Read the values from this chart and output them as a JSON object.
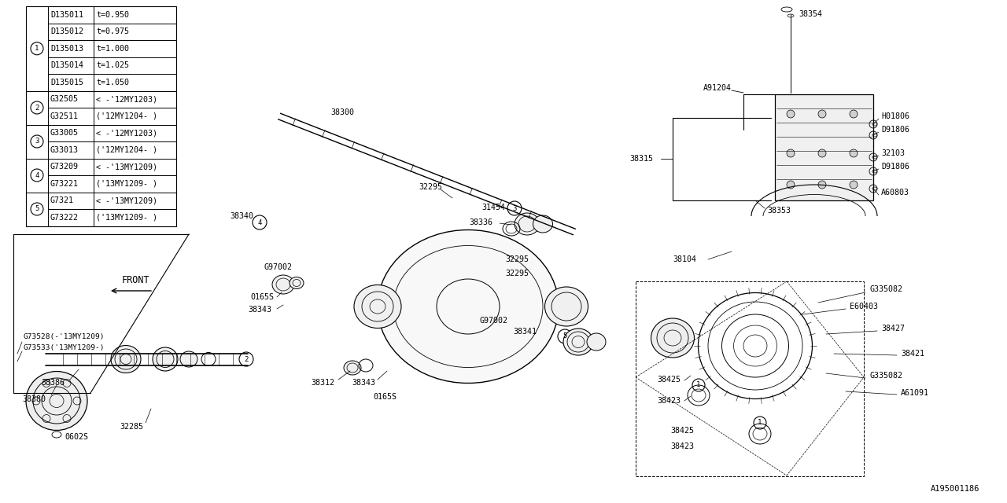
{
  "bg_color": "#ffffff",
  "line_color": "#000000",
  "watermark": "A195001186",
  "table": {
    "rows": [
      {
        "circle": "1",
        "part": "D135011",
        "desc": "t=0.950"
      },
      {
        "circle": "1",
        "part": "D135012",
        "desc": "t=0.975"
      },
      {
        "circle": "1",
        "part": "D135013",
        "desc": "t=1.000"
      },
      {
        "circle": "1",
        "part": "D135014",
        "desc": "t=1.025"
      },
      {
        "circle": "1",
        "part": "D135015",
        "desc": "t=1.050"
      },
      {
        "circle": "2",
        "part": "G32505",
        "desc": "< -'12MY1203)"
      },
      {
        "circle": "2",
        "part": "G32511",
        "desc": "('12MY1204- )"
      },
      {
        "circle": "3",
        "part": "G33005",
        "desc": "< -'12MY1203)"
      },
      {
        "circle": "3",
        "part": "G33013",
        "desc": "('12MY1204- )"
      },
      {
        "circle": "4",
        "part": "G73209",
        "desc": "< -'13MY1209)"
      },
      {
        "circle": "4",
        "part": "G73221",
        "desc": "('13MY1209- )"
      },
      {
        "circle": "5",
        "part": "G7321",
        "desc": "< -'13MY1209)"
      },
      {
        "circle": "5",
        "part": "G73222",
        "desc": "('13MY1209- )"
      }
    ]
  }
}
